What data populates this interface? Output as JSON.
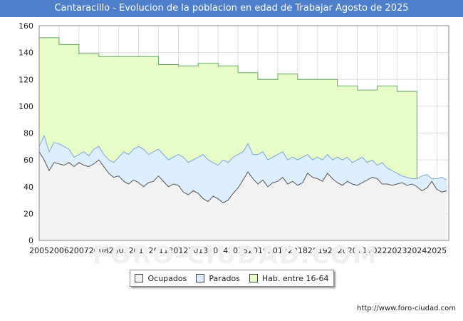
{
  "title": "Cantaracillo - Evolucion de la poblacion en edad de Trabajar Agosto de 2025",
  "source": "http://www.foro-ciudad.com",
  "watermark": "FORO-CIUDAD.COM",
  "chart_data": {
    "type": "area",
    "xlabel": "",
    "ylabel": "",
    "ylim": [
      0,
      160
    ],
    "xlim": [
      2005,
      2025.6
    ],
    "yticks": [
      0,
      20,
      40,
      60,
      80,
      100,
      120,
      140,
      160
    ],
    "xticks": [
      2005,
      2006,
      2007,
      2008,
      2009,
      2010,
      2011,
      2012,
      2013,
      2014,
      2015,
      2016,
      2017,
      2018,
      2019,
      2020,
      2021,
      2022,
      2023,
      2024,
      2025
    ],
    "grid": true,
    "legend_position": "bottom",
    "legend": [
      "Ocupados",
      "Parados",
      "Hab. entre 16-64"
    ],
    "colors": {
      "ocupados_fill": "#f2f2f2",
      "ocupados_line": "#555555",
      "parados_fill": "#ddeeff",
      "parados_line": "#7aa7e0",
      "hab_fill": "#e8fcc8",
      "hab_line": "#66aa66"
    },
    "series": [
      {
        "name": "Hab. entre 16-64",
        "x": [
          2005,
          2006,
          2007,
          2008,
          2009,
          2010,
          2011,
          2012,
          2013,
          2014,
          2015,
          2016,
          2017,
          2018,
          2019,
          2020,
          2021,
          2022,
          2023,
          2024
        ],
        "values": [
          151,
          146,
          139,
          137,
          137,
          137,
          131,
          130,
          132,
          130,
          125,
          120,
          124,
          120,
          120,
          115,
          112,
          115,
          111,
          0
        ]
      },
      {
        "name": "Parados",
        "x": [
          2005,
          2005.25,
          2005.5,
          2005.75,
          2006,
          2006.25,
          2006.5,
          2006.75,
          2007,
          2007.25,
          2007.5,
          2007.75,
          2008,
          2008.25,
          2008.5,
          2008.75,
          2009,
          2009.25,
          2009.5,
          2009.75,
          2010,
          2010.25,
          2010.5,
          2010.75,
          2011,
          2011.25,
          2011.5,
          2011.75,
          2012,
          2012.25,
          2012.5,
          2012.75,
          2013,
          2013.25,
          2013.5,
          2013.75,
          2014,
          2014.25,
          2014.5,
          2014.75,
          2015,
          2015.25,
          2015.5,
          2015.75,
          2016,
          2016.25,
          2016.5,
          2016.75,
          2017,
          2017.25,
          2017.5,
          2017.75,
          2018,
          2018.25,
          2018.5,
          2018.75,
          2019,
          2019.25,
          2019.5,
          2019.75,
          2020,
          2020.25,
          2020.5,
          2020.75,
          2021,
          2021.25,
          2021.5,
          2021.75,
          2022,
          2022.25,
          2022.5,
          2022.75,
          2023,
          2023.25,
          2023.5,
          2023.75,
          2024,
          2024.25,
          2024.5,
          2024.75,
          2025,
          2025.25,
          2025.5
        ],
        "values": [
          70,
          78,
          66,
          73,
          72,
          70,
          68,
          62,
          64,
          66,
          63,
          68,
          70,
          64,
          60,
          58,
          62,
          66,
          64,
          68,
          70,
          68,
          64,
          66,
          68,
          64,
          60,
          62,
          64,
          62,
          58,
          60,
          62,
          64,
          60,
          58,
          56,
          60,
          58,
          62,
          64,
          66,
          72,
          64,
          64,
          66,
          60,
          62,
          64,
          66,
          60,
          62,
          60,
          62,
          64,
          60,
          62,
          60,
          64,
          60,
          62,
          60,
          62,
          58,
          60,
          62,
          58,
          60,
          56,
          58,
          54,
          52,
          50,
          48,
          47,
          46,
          46,
          48,
          49,
          46,
          46,
          47,
          45
        ]
      },
      {
        "name": "Ocupados",
        "x": [
          2005,
          2005.25,
          2005.5,
          2005.75,
          2006,
          2006.25,
          2006.5,
          2006.75,
          2007,
          2007.25,
          2007.5,
          2007.75,
          2008,
          2008.25,
          2008.5,
          2008.75,
          2009,
          2009.25,
          2009.5,
          2009.75,
          2010,
          2010.25,
          2010.5,
          2010.75,
          2011,
          2011.25,
          2011.5,
          2011.75,
          2012,
          2012.25,
          2012.5,
          2012.75,
          2013,
          2013.25,
          2013.5,
          2013.75,
          2014,
          2014.25,
          2014.5,
          2014.75,
          2015,
          2015.25,
          2015.5,
          2015.75,
          2016,
          2016.25,
          2016.5,
          2016.75,
          2017,
          2017.25,
          2017.5,
          2017.75,
          2018,
          2018.25,
          2018.5,
          2018.75,
          2019,
          2019.25,
          2019.5,
          2019.75,
          2020,
          2020.25,
          2020.5,
          2020.75,
          2021,
          2021.25,
          2021.5,
          2021.75,
          2022,
          2022.25,
          2022.5,
          2022.75,
          2023,
          2023.25,
          2023.5,
          2023.75,
          2024,
          2024.25,
          2024.5,
          2024.75,
          2025,
          2025.25,
          2025.5
        ],
        "values": [
          66,
          60,
          52,
          58,
          57,
          56,
          58,
          55,
          58,
          56,
          55,
          57,
          60,
          55,
          50,
          47,
          48,
          44,
          42,
          45,
          43,
          40,
          43,
          44,
          48,
          44,
          40,
          42,
          41,
          36,
          34,
          37,
          35,
          31,
          29,
          33,
          31,
          28,
          30,
          35,
          39,
          45,
          51,
          46,
          42,
          45,
          40,
          43,
          44,
          47,
          42,
          44,
          41,
          43,
          50,
          47,
          46,
          44,
          50,
          46,
          43,
          41,
          44,
          42,
          41,
          43,
          45,
          47,
          46,
          42,
          42,
          41,
          42,
          43,
          41,
          42,
          40,
          37,
          39,
          44,
          38,
          36,
          37
        ]
      }
    ]
  }
}
